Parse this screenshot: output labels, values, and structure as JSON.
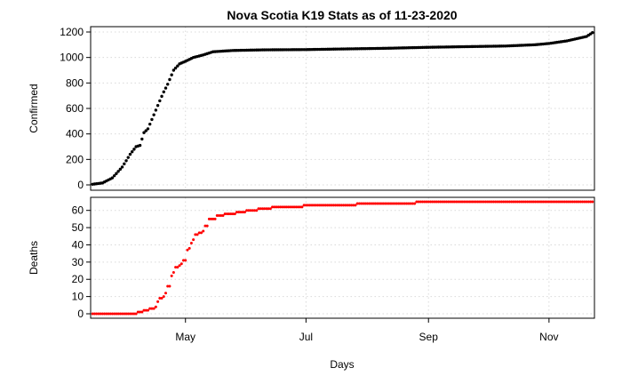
{
  "chart_data": [
    {
      "type": "scatter",
      "title": "Nova Scotia K19 Stats as of 11-23-2020",
      "ylabel": "Confirmed",
      "xlabel": "",
      "x_unit": "date",
      "xlim": [
        "2020-03-14",
        "2020-11-24"
      ],
      "ylim": [
        0,
        1200
      ],
      "yticks": [
        0,
        200,
        400,
        600,
        800,
        1000,
        1200
      ],
      "grid": true,
      "color": "#000000",
      "series": [
        {
          "points": [
            [
              "2020-03-15",
              5
            ],
            [
              "2020-03-20",
              15
            ],
            [
              "2020-03-25",
              55
            ],
            [
              "2020-03-30",
              140
            ],
            [
              "2020-04-03",
              240
            ],
            [
              "2020-04-06",
              300
            ],
            [
              "2020-04-08",
              310
            ],
            [
              "2020-04-10",
              410
            ],
            [
              "2020-04-12",
              440
            ],
            [
              "2020-04-15",
              550
            ],
            [
              "2020-04-18",
              660
            ],
            [
              "2020-04-20",
              730
            ],
            [
              "2020-04-22",
              790
            ],
            [
              "2020-04-25",
              900
            ],
            [
              "2020-04-28",
              950
            ],
            [
              "2020-05-01",
              970
            ],
            [
              "2020-05-05",
              1000
            ],
            [
              "2020-05-10",
              1020
            ],
            [
              "2020-05-15",
              1045
            ],
            [
              "2020-05-25",
              1055
            ],
            [
              "2020-06-10",
              1060
            ],
            [
              "2020-07-01",
              1062
            ],
            [
              "2020-07-20",
              1067
            ],
            [
              "2020-08-10",
              1072
            ],
            [
              "2020-09-01",
              1080
            ],
            [
              "2020-09-20",
              1085
            ],
            [
              "2020-10-10",
              1090
            ],
            [
              "2020-10-25",
              1100
            ],
            [
              "2020-11-01",
              1110
            ],
            [
              "2020-11-10",
              1130
            ],
            [
              "2020-11-20",
              1165
            ],
            [
              "2020-11-23",
              1195
            ]
          ]
        }
      ]
    },
    {
      "type": "scatter",
      "title": "",
      "ylabel": "Deaths",
      "xlabel": "Days",
      "x_unit": "date",
      "xlim": [
        "2020-03-14",
        "2020-11-24"
      ],
      "ylim": [
        0,
        65
      ],
      "yticks": [
        0,
        10,
        20,
        30,
        40,
        50,
        60
      ],
      "xticks": [
        {
          "date": "2020-05-01",
          "label": "May"
        },
        {
          "date": "2020-07-01",
          "label": "Jul"
        },
        {
          "date": "2020-09-01",
          "label": "Sep"
        },
        {
          "date": "2020-11-01",
          "label": "Nov"
        }
      ],
      "grid": true,
      "color": "#ff0000",
      "series": [
        {
          "points": [
            [
              "2020-03-15",
              0
            ],
            [
              "2020-04-06",
              0
            ],
            [
              "2020-04-07",
              1
            ],
            [
              "2020-04-10",
              2
            ],
            [
              "2020-04-13",
              3
            ],
            [
              "2020-04-16",
              4
            ],
            [
              "2020-04-17",
              7
            ],
            [
              "2020-04-18",
              9
            ],
            [
              "2020-04-20",
              10
            ],
            [
              "2020-04-21",
              12
            ],
            [
              "2020-04-22",
              16
            ],
            [
              "2020-04-24",
              22
            ],
            [
              "2020-04-25",
              24
            ],
            [
              "2020-04-26",
              27
            ],
            [
              "2020-04-28",
              28
            ],
            [
              "2020-04-29",
              29
            ],
            [
              "2020-04-30",
              31
            ],
            [
              "2020-05-02",
              37
            ],
            [
              "2020-05-03",
              38
            ],
            [
              "2020-05-04",
              41
            ],
            [
              "2020-05-05",
              43
            ],
            [
              "2020-05-06",
              46
            ],
            [
              "2020-05-08",
              47
            ],
            [
              "2020-05-10",
              48
            ],
            [
              "2020-05-11",
              51
            ],
            [
              "2020-05-13",
              55
            ],
            [
              "2020-05-17",
              57
            ],
            [
              "2020-05-21",
              58
            ],
            [
              "2020-05-27",
              59
            ],
            [
              "2020-06-01",
              60
            ],
            [
              "2020-06-07",
              61
            ],
            [
              "2020-06-14",
              62
            ],
            [
              "2020-06-30",
              63
            ],
            [
              "2020-07-26",
              63
            ],
            [
              "2020-07-27",
              64
            ],
            [
              "2020-08-25",
              64
            ],
            [
              "2020-08-26",
              65
            ],
            [
              "2020-11-23",
              65
            ]
          ]
        }
      ]
    }
  ]
}
